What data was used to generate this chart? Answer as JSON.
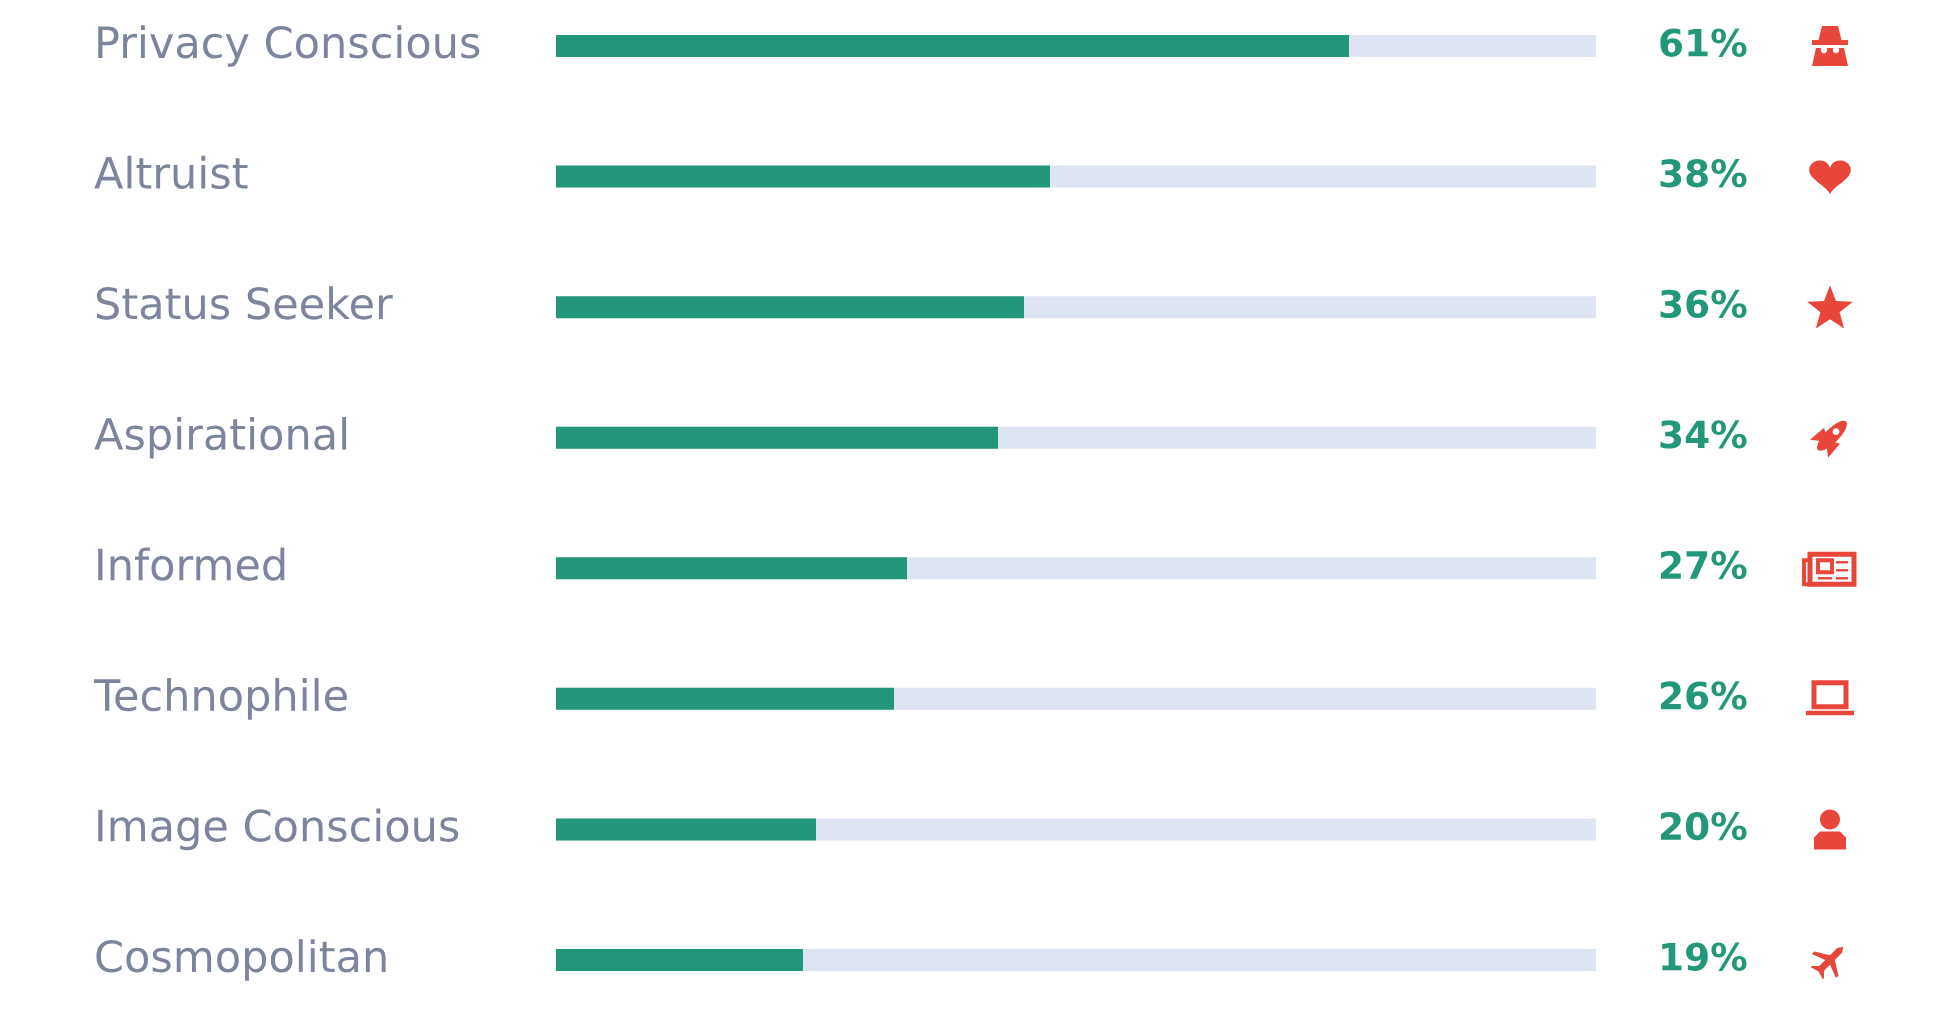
{
  "chart_data": {
    "type": "bar",
    "orientation": "horizontal",
    "categories": [
      "Privacy Conscious",
      "Altruist",
      "Status Seeker",
      "Aspirational",
      "Informed",
      "Technophile",
      "Image Conscious",
      "Cosmopolitan"
    ],
    "values": [
      61,
      38,
      36,
      34,
      27,
      26,
      20,
      19
    ],
    "color": "#23977a",
    "value_labels": [
      "61%",
      "38%",
      "36%",
      "34%",
      "27%",
      "26%",
      "20%",
      "19%"
    ],
    "xlim": [
      0,
      80
    ],
    "tick_labels": "y"
  }
}
